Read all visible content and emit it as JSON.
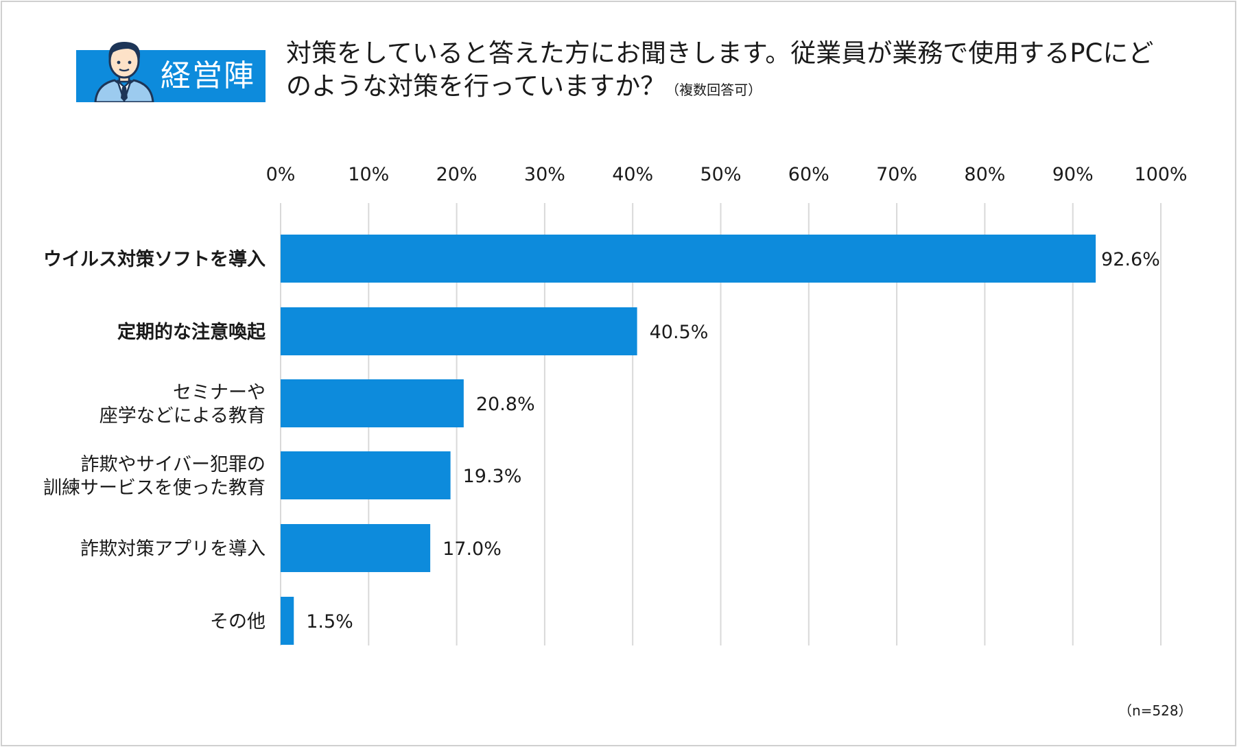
{
  "badge": {
    "label": "経営陣"
  },
  "title": {
    "main": "対策をしていると答えた方にお聞きします。従業員が業務で使用するPCにどのような対策を行っていますか？",
    "note": "（複数回答可）"
  },
  "sample_note": "（n=528）",
  "colors": {
    "bar": "#0d8bdc",
    "badge": "#0d8bdc",
    "grid": "#d9d9d9"
  },
  "chart_data": {
    "type": "bar",
    "orientation": "horizontal",
    "title": "",
    "xlabel": "",
    "ylabel": "",
    "xlim": [
      0,
      100
    ],
    "x_ticks": [
      "0%",
      "10%",
      "20%",
      "30%",
      "40%",
      "50%",
      "60%",
      "70%",
      "80%",
      "90%",
      "100%"
    ],
    "axis_position": "top",
    "grid": true,
    "categories": [
      [
        "ウイルス対策ソフトを導入"
      ],
      [
        "定期的な注意喚起"
      ],
      [
        "セミナーや",
        "座学などによる教育"
      ],
      [
        "詐欺やサイバー犯罪の",
        "訓練サービスを使った教育"
      ],
      [
        "詐欺対策アプリを導入"
      ],
      [
        "その他"
      ]
    ],
    "bold_categories": [
      true,
      true,
      false,
      false,
      false,
      false
    ],
    "values": [
      92.6,
      40.5,
      20.8,
      19.3,
      17.0,
      1.5
    ],
    "value_labels": [
      "92.6%",
      "40.5%",
      "20.8%",
      "19.3%",
      "17.0%",
      "1.5%"
    ]
  }
}
